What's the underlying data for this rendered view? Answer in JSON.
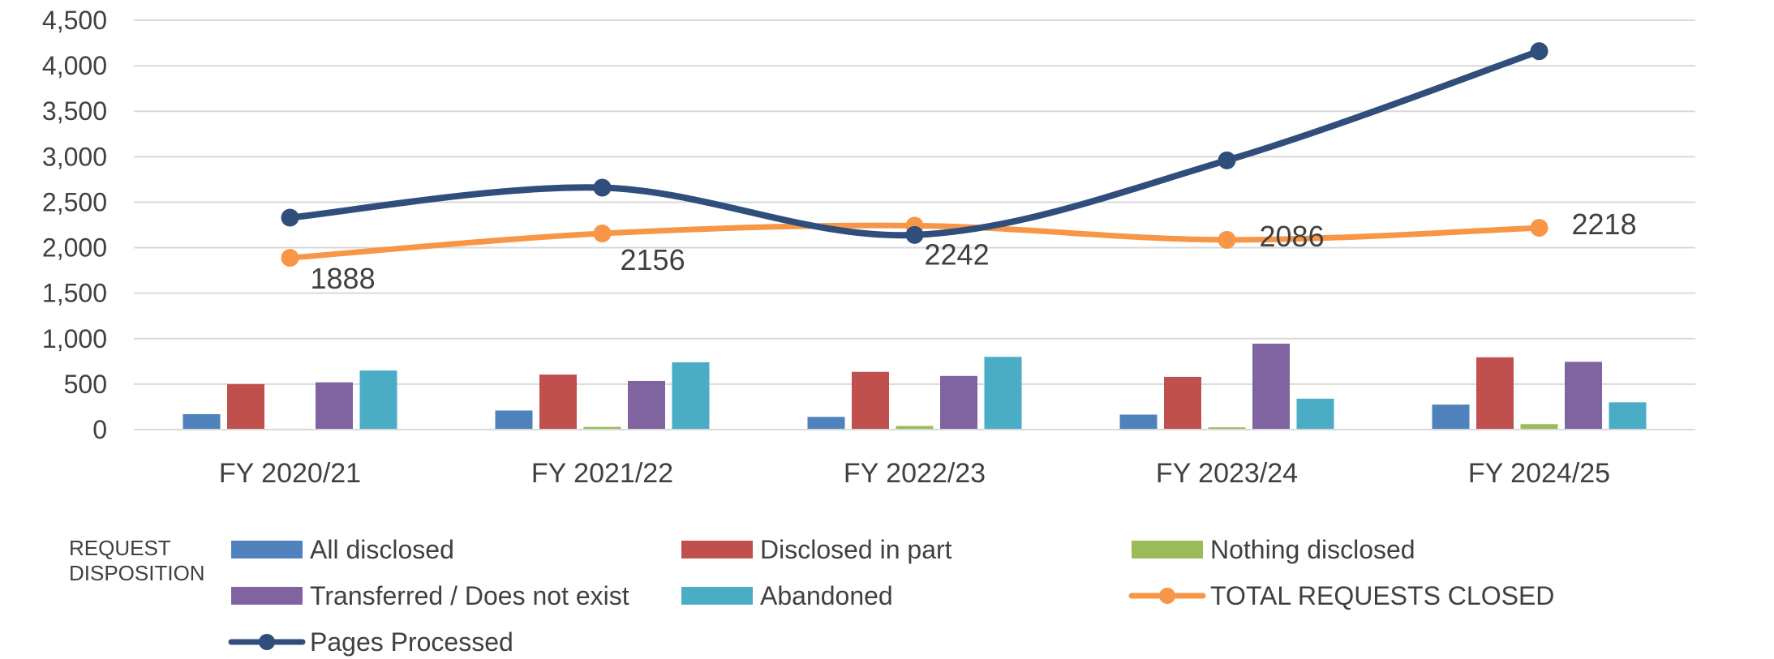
{
  "chart_data": {
    "type": "bar",
    "combo": "bar+line",
    "categories": [
      "FY 2020/21",
      "FY 2021/22",
      "FY 2022/23",
      "FY 2023/24",
      "FY 2024/25"
    ],
    "ylim": [
      0,
      4500
    ],
    "yticks": [
      0,
      500,
      1000,
      1500,
      2000,
      2500,
      3000,
      3500,
      4000,
      4500
    ],
    "ytick_labels": [
      "0",
      "500",
      "1,000",
      "1,500",
      "2,000",
      "2,500",
      "3,000",
      "3,500",
      "4,000",
      "4,500"
    ],
    "grid": true,
    "legend_position": "bottom",
    "legend_title": [
      "REQUEST",
      "DISPOSITION"
    ],
    "bar_series": [
      {
        "name": "All disclosed",
        "color": "#4F81BD",
        "values": [
          170,
          210,
          140,
          165,
          275
        ]
      },
      {
        "name": "Disclosed in part",
        "color": "#C0504D",
        "values": [
          500,
          605,
          635,
          580,
          795
        ]
      },
      {
        "name": "Nothing disclosed",
        "color": "#9BBB59",
        "values": [
          10,
          30,
          40,
          25,
          60
        ]
      },
      {
        "name": "Transferred / Does not exist",
        "color": "#8064A2",
        "values": [
          520,
          535,
          590,
          945,
          745
        ]
      },
      {
        "name": "Abandoned",
        "color": "#4BACC6",
        "values": [
          650,
          740,
          800,
          340,
          300
        ]
      }
    ],
    "line_series": [
      {
        "name": "TOTAL REQUESTS CLOSED",
        "color": "#F79646",
        "values": [
          1888,
          2156,
          2242,
          2086,
          2218
        ],
        "data_labels": [
          "1888",
          "2156",
          "2242",
          "2086",
          "2218"
        ]
      },
      {
        "name": "Pages Processed",
        "color": "#2F4E7C",
        "values": [
          2330,
          2660,
          2140,
          2960,
          4160
        ]
      }
    ]
  }
}
